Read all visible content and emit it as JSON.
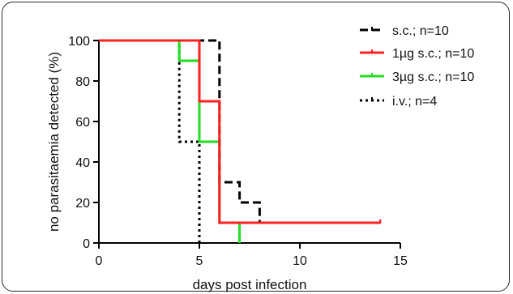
{
  "chart_data": {
    "type": "line",
    "step": true,
    "xlabel": "days post infection",
    "ylabel": "no parasitaemia detected (%)",
    "xlim": [
      0,
      15
    ],
    "ylim": [
      0,
      100
    ],
    "x_ticks": [
      0,
      5,
      10,
      15
    ],
    "y_ticks": [
      0,
      20,
      40,
      60,
      80,
      100
    ],
    "grid": false,
    "legend_position": "top-right",
    "series": [
      {
        "name": "s.c.; n=10",
        "color": "#000000",
        "dash": "long-dash",
        "x": [
          0,
          6,
          6,
          7,
          7,
          8,
          8,
          14
        ],
        "y": [
          100,
          100,
          30,
          30,
          20,
          20,
          10,
          10
        ]
      },
      {
        "name": "1µg s.c.; n=10",
        "color": "#ff2020",
        "dash": "solid",
        "x": [
          0,
          5,
          5,
          6,
          6,
          14
        ],
        "y": [
          100,
          100,
          70,
          70,
          10,
          10
        ]
      },
      {
        "name": "3µg s.c.; n=10",
        "color": "#22dd22",
        "dash": "solid",
        "x": [
          0,
          4,
          4,
          5,
          5,
          6,
          6,
          7,
          7
        ],
        "y": [
          100,
          100,
          90,
          90,
          50,
          50,
          10,
          10,
          0
        ]
      },
      {
        "name": "i.v.; n=4",
        "color": "#000000",
        "dash": "dotted",
        "x": [
          0,
          4,
          4,
          5,
          5
        ],
        "y": [
          100,
          100,
          50,
          50,
          0
        ]
      }
    ]
  }
}
